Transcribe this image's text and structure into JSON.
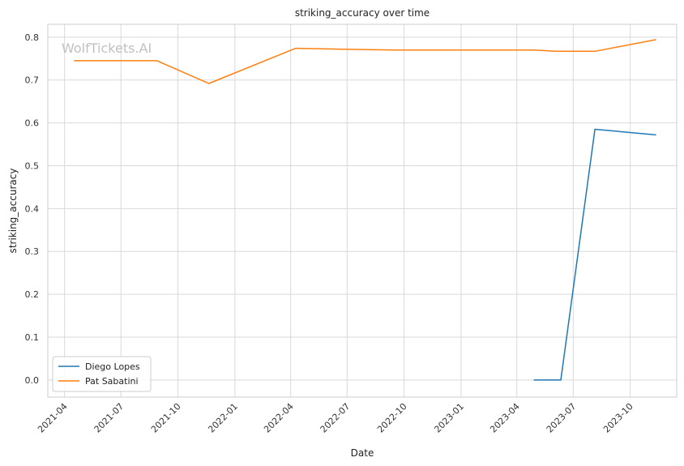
{
  "chart_data": {
    "type": "line",
    "title": "striking_accuracy over time",
    "xlabel": "Date",
    "ylabel": "striking_accuracy",
    "watermark": "WolfTickets.AI",
    "grid": true,
    "legend_position": "lower-left",
    "x_axis": {
      "type": "date",
      "range": [
        "2021-03-05",
        "2023-12-15"
      ],
      "ticks": [
        "2021-04",
        "2021-07",
        "2021-10",
        "2022-01",
        "2022-04",
        "2022-07",
        "2022-10",
        "2023-01",
        "2023-04",
        "2023-07",
        "2023-10"
      ]
    },
    "y_axis": {
      "range": [
        -0.04,
        0.83
      ],
      "ticks": [
        "0.0",
        "0.1",
        "0.2",
        "0.3",
        "0.4",
        "0.5",
        "0.6",
        "0.7",
        "0.8"
      ]
    },
    "series": [
      {
        "name": "Diego Lopes",
        "color": "#1f77b4",
        "points": [
          {
            "x": "2023-04-29",
            "y": 0.0
          },
          {
            "x": "2023-06-11",
            "y": 0.0
          },
          {
            "x": "2023-08-05",
            "y": 0.585
          },
          {
            "x": "2023-11-11",
            "y": 0.572
          }
        ]
      },
      {
        "name": "Pat Sabatini",
        "color": "#ff7f0e",
        "points": [
          {
            "x": "2021-04-17",
            "y": 0.745
          },
          {
            "x": "2021-08-28",
            "y": 0.745
          },
          {
            "x": "2021-11-20",
            "y": 0.692
          },
          {
            "x": "2022-04-09",
            "y": 0.774
          },
          {
            "x": "2022-06-25",
            "y": 0.772
          },
          {
            "x": "2022-09-17",
            "y": 0.77
          },
          {
            "x": "2023-04-29",
            "y": 0.77
          },
          {
            "x": "2023-06-03",
            "y": 0.767
          },
          {
            "x": "2023-08-05",
            "y": 0.767
          },
          {
            "x": "2023-11-11",
            "y": 0.794
          }
        ]
      }
    ]
  }
}
